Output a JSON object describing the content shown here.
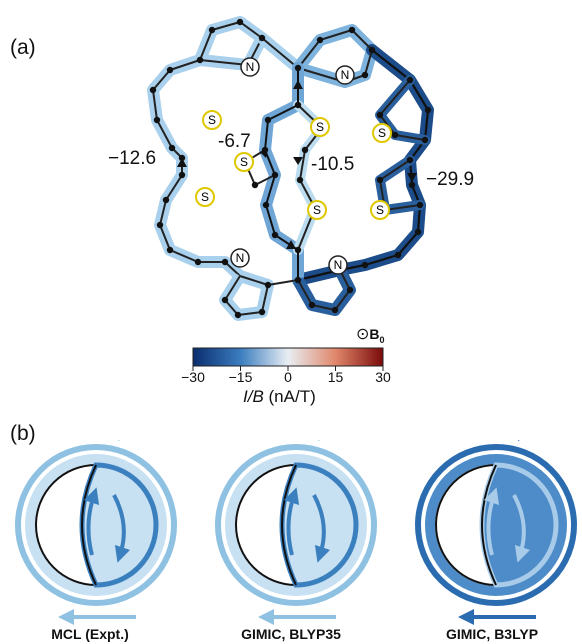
{
  "panels": {
    "a": "(a)",
    "b": "(b)"
  },
  "atoms": {
    "nitrogen": "N",
    "sulfur": "S"
  },
  "currents": {
    "left": "−12.6",
    "inner_left": "-6.7",
    "inner_right": "-10.5",
    "right": "−29.9"
  },
  "colorbar": {
    "ticks": [
      "−30",
      "−15",
      "0",
      "15",
      "30"
    ],
    "tick_values": [
      -30,
      -15,
      0,
      15,
      30
    ],
    "title_var": "I/B",
    "title_unit": " (nA/T)",
    "field_symbol": "⊙",
    "field_label": "B",
    "field_sub": "0",
    "colors": [
      "#0a2d6e",
      "#3b7dbf",
      "#e8eef3",
      "#e0876b",
      "#7a0a0a"
    ]
  },
  "loops": [
    {
      "label": "MCL (Expt.)",
      "outer_color": "#8fc1e3",
      "inner_color": "#3a7fbe",
      "bg_color": "#c7e0f2"
    },
    {
      "label": "GIMIC, BLYP35",
      "outer_color": "#8fc1e3",
      "inner_color": "#3a7fbe",
      "bg_color": "#c7e0f2"
    },
    {
      "label": "GIMIC, B3LYP",
      "outer_color": "#2b6cb0",
      "inner_color": "#a7cbe8",
      "bg_color": "#4d8cc8"
    }
  ]
}
